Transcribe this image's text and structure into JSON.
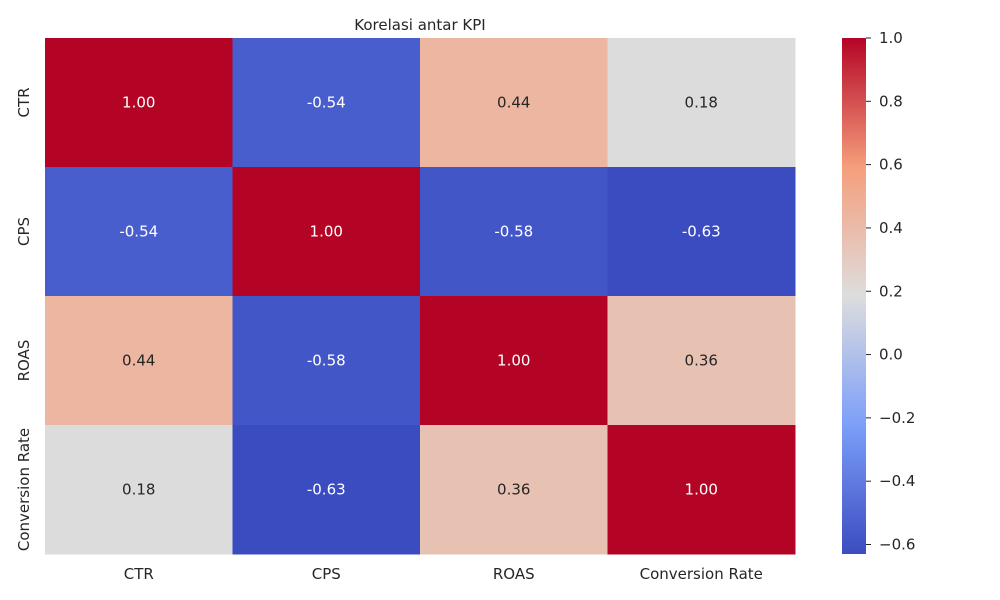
{
  "chart_data": {
    "type": "heatmap",
    "title": "Korelasi antar KPI",
    "xlabel": "",
    "ylabel": "",
    "x_categories": [
      "CTR",
      "CPS",
      "ROAS",
      "Conversion Rate"
    ],
    "y_categories": [
      "CTR",
      "CPS",
      "ROAS",
      "Conversion Rate"
    ],
    "values": [
      [
        1.0,
        -0.54,
        0.44,
        0.18
      ],
      [
        -0.54,
        1.0,
        -0.58,
        -0.63
      ],
      [
        0.44,
        -0.58,
        1.0,
        0.36
      ],
      [
        0.18,
        -0.63,
        0.36,
        1.0
      ]
    ],
    "annotations": [
      [
        "1.00",
        "-0.54",
        "0.44",
        "0.18"
      ],
      [
        "-0.54",
        "1.00",
        "-0.58",
        "-0.63"
      ],
      [
        "0.44",
        "-0.58",
        "1.00",
        "0.36"
      ],
      [
        "0.18",
        "-0.63",
        "0.36",
        "1.00"
      ]
    ],
    "colormap": "coolwarm",
    "colorbar": {
      "min": -0.63,
      "max": 1.0,
      "ticks": [
        1.0,
        0.8,
        0.6,
        0.4,
        0.2,
        0.0,
        -0.2,
        -0.4,
        -0.6
      ],
      "tick_labels": [
        "1.0",
        "0.8",
        "0.6",
        "0.4",
        "0.2",
        "0.0",
        "−0.2",
        "−0.4",
        "−0.6"
      ]
    },
    "grid": false,
    "legend": "colorbar-right"
  }
}
